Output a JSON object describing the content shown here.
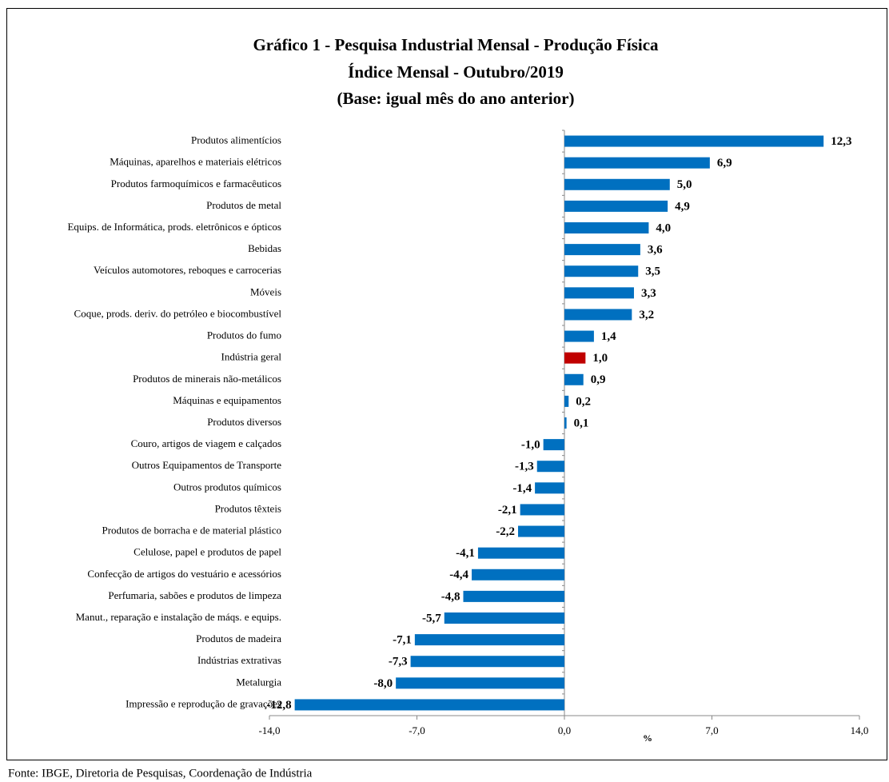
{
  "chart_data": {
    "type": "barh",
    "title": [
      "Gráfico 1 - Pesquisa Industrial Mensal - Produção Física",
      "Índice Mensal - Outubro/2019",
      "(Base: igual mês do ano anterior)"
    ],
    "categories": [
      "Produtos alimentícios",
      "Máquinas, aparelhos e materiais elétricos",
      "Produtos farmoquímicos e farmacêuticos",
      "Produtos de metal",
      "Equips. de Informática, prods. eletrônicos e ópticos",
      "Bebidas",
      "Veículos automotores, reboques e carrocerias",
      "Móveis",
      "Coque, prods. deriv. do petróleo e biocombustível",
      "Produtos do fumo",
      "Indústria geral",
      "Produtos de minerais não-metálicos",
      "Máquinas e equipamentos",
      "Produtos diversos",
      "Couro, artigos de viagem e calçados",
      "Outros Equipamentos de Transporte",
      "Outros produtos químicos",
      "Produtos têxteis",
      "Produtos de borracha e de material plástico",
      "Celulose, papel e produtos de papel",
      "Confecção de artigos do vestuário e acessórios",
      "Perfumaria, sabões e produtos de limpeza",
      "Manut., reparação e instalação de máqs. e equips.",
      "Produtos de madeira",
      "Indústrias extrativas",
      "Metalurgia",
      "Impressão e reprodução de gravações"
    ],
    "values": [
      12.3,
      6.9,
      5.0,
      4.9,
      4.0,
      3.6,
      3.5,
      3.3,
      3.2,
      1.4,
      1.0,
      0.9,
      0.2,
      0.1,
      -1.0,
      -1.3,
      -1.4,
      -2.1,
      -2.2,
      -4.1,
      -4.4,
      -4.8,
      -5.7,
      -7.1,
      -7.3,
      -8.0,
      -12.8
    ],
    "value_labels": [
      "12,3",
      "6,9",
      "5,0",
      "4,9",
      "4,0",
      "3,6",
      "3,5",
      "3,3",
      "3,2",
      "1,4",
      "1,0",
      "0,9",
      "0,2",
      "0,1",
      "-1,0",
      "-1,3",
      "-1,4",
      "-2,1",
      "-2,2",
      "-4,1",
      "-4,4",
      "-4,8",
      "-5,7",
      "-7,1",
      "-7,3",
      "-8,0",
      "-12,8"
    ],
    "colors": [
      "#0070c0",
      "#0070c0",
      "#0070c0",
      "#0070c0",
      "#0070c0",
      "#0070c0",
      "#0070c0",
      "#0070c0",
      "#0070c0",
      "#0070c0",
      "#c00000",
      "#0070c0",
      "#0070c0",
      "#0070c0",
      "#0070c0",
      "#0070c0",
      "#0070c0",
      "#0070c0",
      "#0070c0",
      "#0070c0",
      "#0070c0",
      "#0070c0",
      "#0070c0",
      "#0070c0",
      "#0070c0",
      "#0070c0",
      "#0070c0"
    ],
    "xlim": [
      -14,
      14
    ],
    "xticks": [
      {
        "value": -14,
        "label": "-14,0"
      },
      {
        "value": -7,
        "label": "-7,0"
      },
      {
        "value": 0,
        "label": "0,0"
      },
      {
        "value": 7,
        "label": "7,0"
      },
      {
        "value": 14,
        "label": "14,0"
      }
    ],
    "xlabel": "%",
    "source": "Fonte: IBGE, Diretoria de Pesquisas, Coordenação de Indústria"
  }
}
